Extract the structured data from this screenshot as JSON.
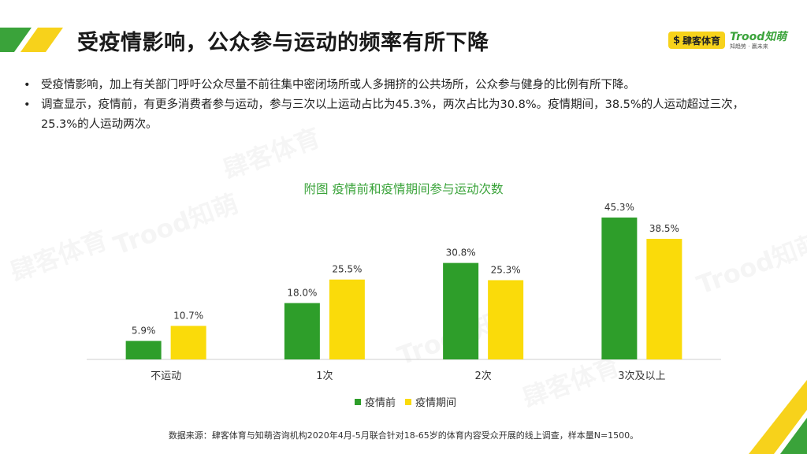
{
  "header": {
    "title": "受疫情影响，公众参与运动的频率有所下降",
    "logo_sike_text": "肆客体育",
    "logo_trood_brand": "Trood知萌",
    "logo_trood_tag": "知趋势 · 赢未来"
  },
  "bullets": [
    "受疫情影响，加上有关部门呼吁公众尽量不前往集中密闭场所或人多拥挤的公共场所，公众参与健身的比例有所下降。",
    "调查显示，疫情前，有更多消费者参与运动，参与三次以上运动占比为45.3%，两次占比为30.8%。疫情期间，38.5%的人运动超过三次，25.3%的人运动两次。"
  ],
  "bullet_char": "•",
  "chart_data": {
    "type": "bar",
    "title": "附图  疫情前和疫情期间参与运动次数",
    "categories": [
      "不运动",
      "1次",
      "2次",
      "3次及以上"
    ],
    "series": [
      {
        "name": "疫情前",
        "values": [
          5.9,
          18.0,
          30.8,
          45.3
        ],
        "color": "#2e9e2a"
      },
      {
        "name": "疫情期间",
        "values": [
          10.7,
          25.5,
          25.3,
          38.5
        ],
        "color": "#fadb0a"
      }
    ],
    "value_suffix": "%",
    "ylim": [
      0,
      45.3
    ],
    "legend": "bottom"
  },
  "source": "数据来源：肆客体育与知萌咨询机构2020年4月-5月联合针对18-65岁的体育内容受众开展的线上调查，样本量N=1500。",
  "colors": {
    "accent_green": "#3aa33a",
    "accent_yellow": "#f7d21b"
  },
  "watermarks": [
    "肆客体育",
    "Trood知萌"
  ]
}
